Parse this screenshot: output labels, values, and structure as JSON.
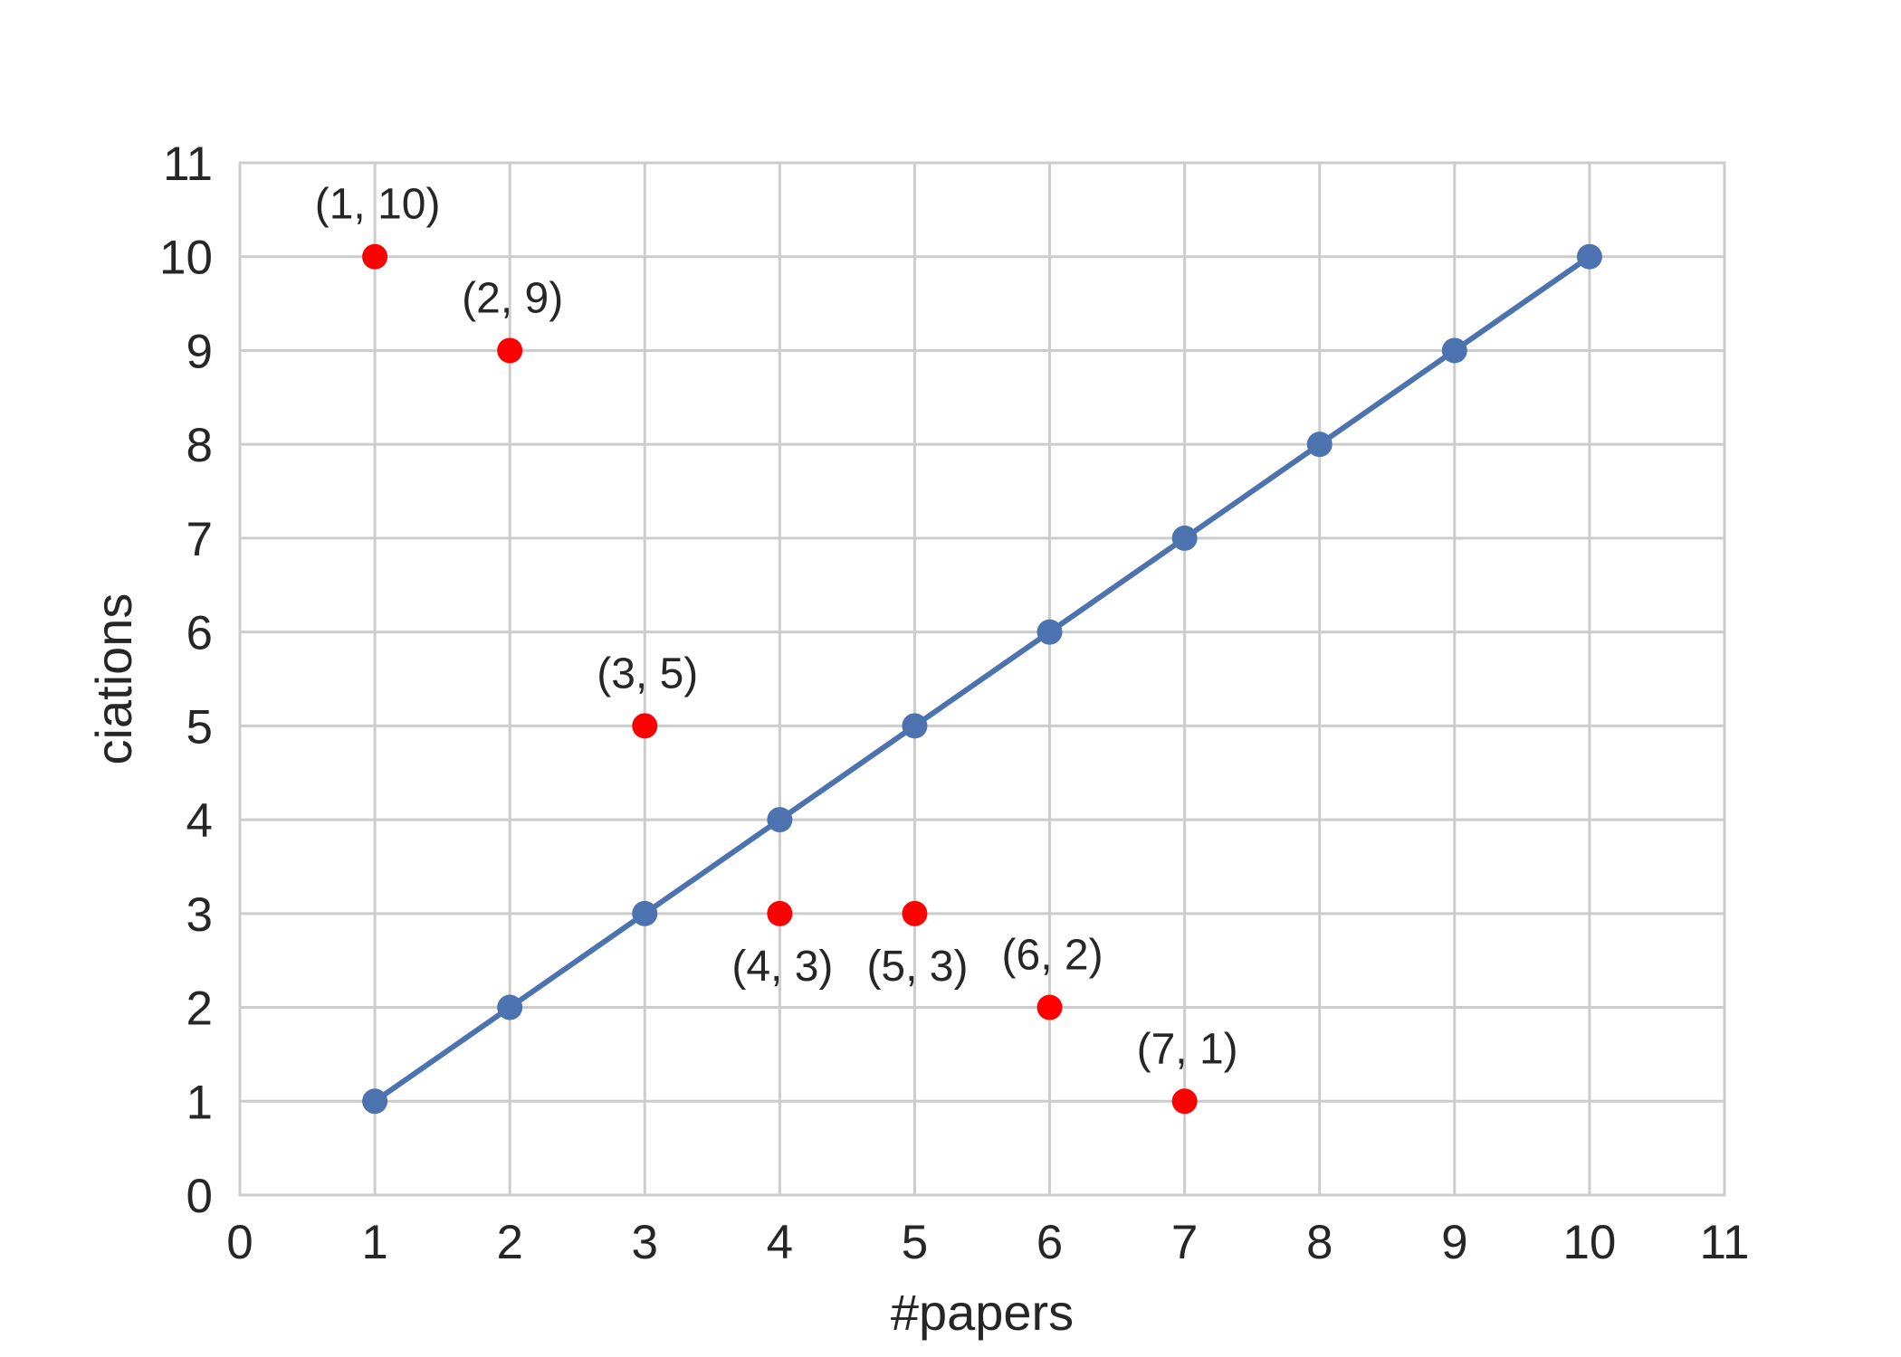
{
  "chart_data": {
    "type": "scatter",
    "xlabel": "#papers",
    "ylabel": "ciations",
    "xlim": [
      0,
      11
    ],
    "ylim": [
      0,
      11
    ],
    "xticks": [
      0,
      1,
      2,
      3,
      4,
      5,
      6,
      7,
      8,
      9,
      10,
      11
    ],
    "yticks": [
      0,
      1,
      2,
      3,
      4,
      5,
      6,
      7,
      8,
      9,
      10,
      11
    ],
    "grid": true,
    "series": [
      {
        "kind": "line-with-markers",
        "color": "#4c72b0",
        "points": [
          {
            "x": 1,
            "y": 1
          },
          {
            "x": 2,
            "y": 2
          },
          {
            "x": 3,
            "y": 3
          },
          {
            "x": 4,
            "y": 4
          },
          {
            "x": 5,
            "y": 5
          },
          {
            "x": 6,
            "y": 6
          },
          {
            "x": 7,
            "y": 7
          },
          {
            "x": 8,
            "y": 8
          },
          {
            "x": 9,
            "y": 9
          },
          {
            "x": 10,
            "y": 10
          }
        ]
      },
      {
        "kind": "markers",
        "color": "#ff0000",
        "points": [
          {
            "x": 1,
            "y": 10,
            "label": "(1, 10)",
            "label_position": "above"
          },
          {
            "x": 2,
            "y": 9,
            "label": "(2, 9)",
            "label_position": "above"
          },
          {
            "x": 3,
            "y": 5,
            "label": "(3, 5)",
            "label_position": "above"
          },
          {
            "x": 4,
            "y": 3,
            "label": "(4, 3)",
            "label_position": "below"
          },
          {
            "x": 5,
            "y": 3,
            "label": "(5, 3)",
            "label_position": "below"
          },
          {
            "x": 6,
            "y": 2,
            "label": "(6, 2)",
            "label_position": "above"
          },
          {
            "x": 7,
            "y": 1,
            "label": "(7, 1)",
            "label_position": "above"
          }
        ]
      }
    ]
  }
}
